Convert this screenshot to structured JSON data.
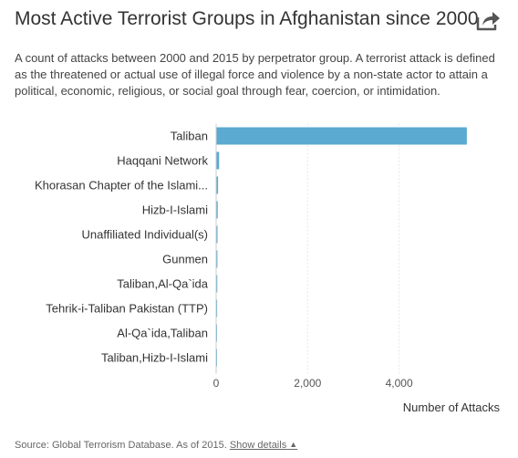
{
  "header": {
    "title": "Most Active Terrorist Groups in Afghanistan since 2000",
    "subtitle": "A count of attacks between 2000 and 2015 by perpetrator group. A terrorist attack is defined as the threatened or actual use of illegal force and violence by a non-state actor to attain a political, economic, religious, or social goal through fear, coercion, or intimidation.",
    "share_icon": "share-icon"
  },
  "chart_data": {
    "type": "bar",
    "orientation": "horizontal",
    "title": "Most Active Terrorist Groups in Afghanistan since 2000",
    "xlabel": "Number of Attacks",
    "ylabel": "",
    "categories": [
      "Taliban",
      "Haqqani Network",
      "Khorasan Chapter of the Islami...",
      "Hizb-I-Islami",
      "Unaffiliated Individual(s)",
      "Gunmen",
      "Taliban,Al-Qa`ida",
      "Tehrik-i-Taliban Pakistan (TTP)",
      "Al-Qa`ida,Taliban",
      "Taliban,Hizb-I-Islami"
    ],
    "values": [
      5480,
      65,
      42,
      35,
      30,
      28,
      25,
      22,
      20,
      18
    ],
    "xlim": [
      0,
      6200
    ],
    "x_ticks": [
      0,
      2000,
      4000
    ],
    "x_tick_labels": [
      "0",
      "2,000",
      "4,000"
    ],
    "grid": true,
    "color": "#5aaad2"
  },
  "footer": {
    "source": "Source: Global Terrorism Database. As of 2015.",
    "details_link": "Show details",
    "details_caret": "▲"
  }
}
